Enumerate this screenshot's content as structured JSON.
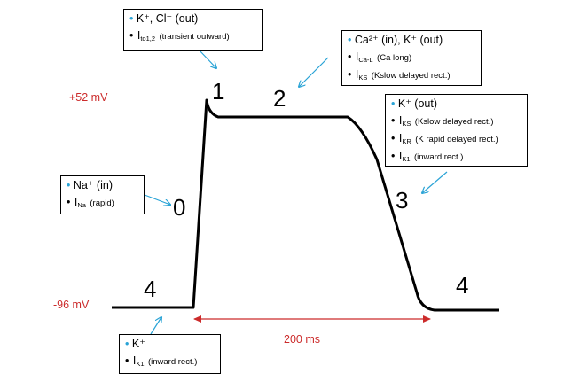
{
  "voltages": {
    "top": "+52 mV",
    "bottom": "-96 mV"
  },
  "duration_label": "200 ms",
  "phases": {
    "p0": "0",
    "p1": "1",
    "p2": "2",
    "p3": "3",
    "p4_left": "4",
    "p4_right": "4"
  },
  "boxes": {
    "phase1": {
      "ion": "K⁺, Cl⁻ (out)",
      "current_main": "I",
      "current_sub": "to1,2",
      "desc": "(transient outward)"
    },
    "phase2": {
      "ion": "Ca²⁺ (in), K⁺ (out)",
      "cur1_main": "I",
      "cur1_sub": "Ca-L",
      "cur1_desc": "(Ca long)",
      "cur2_main": "I",
      "cur2_sub": "KS",
      "cur2_desc": "(Kslow delayed rect.)"
    },
    "phase3": {
      "ion": "K⁺ (out)",
      "cur1_main": "I",
      "cur1_sub": "KS",
      "cur1_desc": "(Kslow delayed rect.)",
      "cur2_main": "I",
      "cur2_sub": "KR",
      "cur2_desc": "(K rapid delayed rect.)",
      "cur3_main": "I",
      "cur3_sub": "K1",
      "cur3_desc": "(inward rect.)"
    },
    "phase0": {
      "ion": "Na⁺ (in)",
      "current_main": "I",
      "current_sub": "Na",
      "desc": "(rapid)"
    },
    "phase4": {
      "ion": "K⁺",
      "current_main": "I",
      "current_sub": "K1",
      "desc": "(inward rect.)"
    }
  },
  "colors": {
    "bullet": "#29a3d6",
    "arrow": "#29a3d6",
    "voltage_text": "#cc2b2b",
    "trace": "#000000"
  }
}
